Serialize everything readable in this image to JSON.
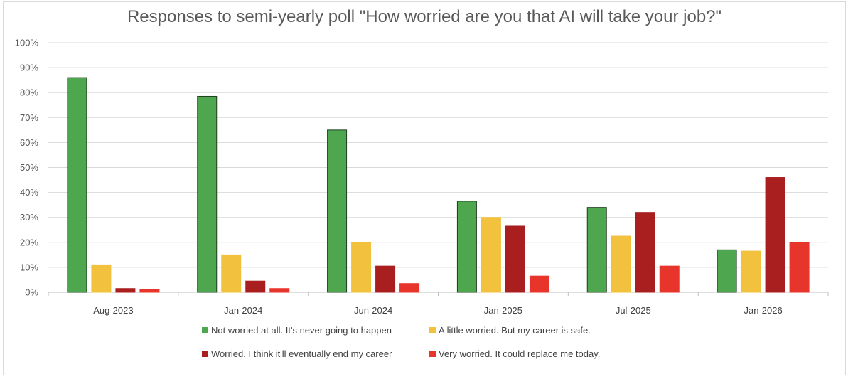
{
  "chart_data": {
    "type": "bar",
    "title": "Responses to semi-yearly poll \"How worried are you that AI will take your job?\"",
    "xlabel": "",
    "ylabel": "",
    "ylim": [
      0,
      100
    ],
    "y_ticks": [
      "0%",
      "10%",
      "20%",
      "30%",
      "40%",
      "50%",
      "60%",
      "70%",
      "80%",
      "90%",
      "100%"
    ],
    "grid": true,
    "legend_position": "bottom",
    "categories": [
      "Aug-2023",
      "Jan-2024",
      "Jun-2024",
      "Jan-2025",
      "Jul-2025",
      "Jan-2026"
    ],
    "series": [
      {
        "name": "Not worried at all. It's never going to happen",
        "color": "#4ea64f",
        "stroke": "#1f3f1f",
        "values": [
          86,
          78.5,
          65,
          36.5,
          34,
          17
        ]
      },
      {
        "name": "A little worried. But my career is safe.",
        "color": "#f2c13d",
        "stroke": "#f2c13d",
        "values": [
          11,
          15,
          20,
          30,
          22.5,
          16.5
        ]
      },
      {
        "name": "Worried. I think it'll eventually end my career",
        "color": "#a91e1e",
        "stroke": "#a91e1e",
        "values": [
          1.5,
          4.5,
          10.5,
          26.5,
          32,
          46
        ]
      },
      {
        "name": "Very worried. It could replace me today.",
        "color": "#e8352b",
        "stroke": "#e8352b",
        "values": [
          1,
          1.5,
          3.5,
          6.5,
          10.5,
          20
        ]
      }
    ]
  }
}
